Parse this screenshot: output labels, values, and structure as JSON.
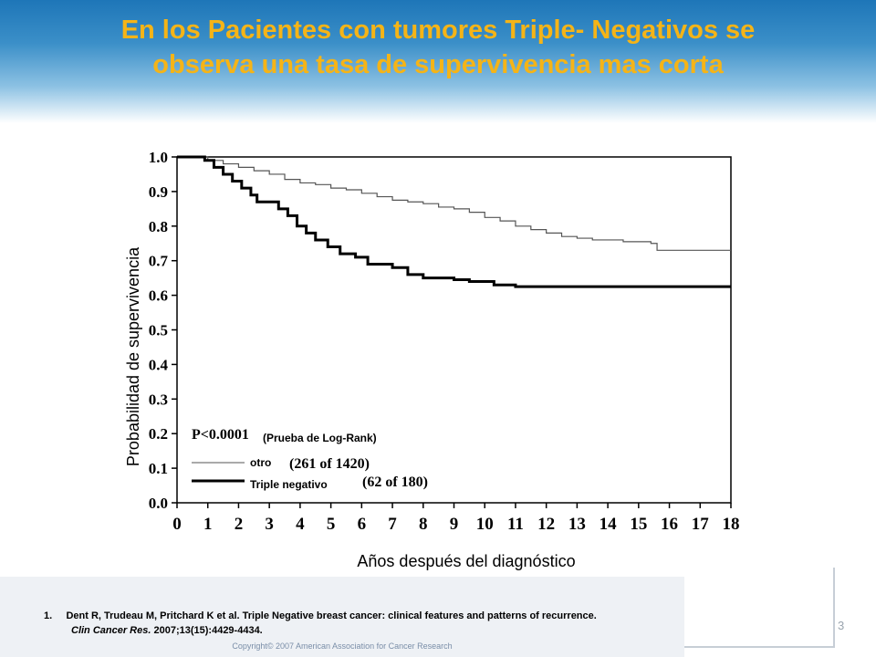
{
  "slide": {
    "title_line1": "En los Pacientes con tumores Triple- Negativos se",
    "title_line2": "observa una tasa de supervivencia mas corta",
    "page_number": "3",
    "colors": {
      "title": "#f5b417",
      "header": "#1e76b8"
    }
  },
  "reference": {
    "number": "1.",
    "text": "Dent R, Trudeau M, Pritchard K et al. Triple Negative breast cancer: clinical features and patterns of recurrence.",
    "journal": "Clin Cancer Res.",
    "citation": "2007;13(15):4429-4434."
  },
  "copyright": "Copyright© 2007 American Association for Cancer Research",
  "chart_data": {
    "type": "line",
    "subtype": "kaplan-meier step",
    "xlabel": "Años después del diagnóstico",
    "ylabel": "Probabilidad de supervivencia",
    "xlim": [
      0,
      18
    ],
    "ylim": [
      0,
      1.0
    ],
    "x_ticks": [
      "0",
      "1",
      "2",
      "3",
      "4",
      "5",
      "6",
      "7",
      "8",
      "9",
      "10",
      "11",
      "12",
      "13",
      "14",
      "15",
      "16",
      "17",
      "18"
    ],
    "y_ticks": [
      "0.0",
      "0.1",
      "0.2",
      "0.3",
      "0.4",
      "0.5",
      "0.6",
      "0.7",
      "0.8",
      "0.9",
      "1.0"
    ],
    "grid": false,
    "legend_position": "bottom-left",
    "pvalue": "P<0.0001",
    "test_label": "(Prueba de Log-Rank)",
    "series": [
      {
        "name": "otro",
        "count": "(261 of 1420)",
        "stroke": "thin",
        "color": "#555555",
        "points": [
          [
            0,
            1.0
          ],
          [
            0.5,
            1.0
          ],
          [
            1,
            0.99
          ],
          [
            1.5,
            0.98
          ],
          [
            2,
            0.97
          ],
          [
            2.5,
            0.96
          ],
          [
            3,
            0.95
          ],
          [
            3.5,
            0.935
          ],
          [
            4,
            0.925
          ],
          [
            4.5,
            0.92
          ],
          [
            5,
            0.91
          ],
          [
            5.5,
            0.905
          ],
          [
            6,
            0.895
          ],
          [
            6.5,
            0.885
          ],
          [
            7,
            0.875
          ],
          [
            7.5,
            0.87
          ],
          [
            8,
            0.865
          ],
          [
            8.5,
            0.855
          ],
          [
            9,
            0.85
          ],
          [
            9.5,
            0.84
          ],
          [
            10,
            0.825
          ],
          [
            10.5,
            0.815
          ],
          [
            11,
            0.8
          ],
          [
            11.5,
            0.79
          ],
          [
            12,
            0.78
          ],
          [
            12.5,
            0.77
          ],
          [
            13,
            0.765
          ],
          [
            13.5,
            0.76
          ],
          [
            14,
            0.76
          ],
          [
            14.5,
            0.755
          ],
          [
            15,
            0.755
          ],
          [
            15.4,
            0.75
          ],
          [
            15.6,
            0.73
          ],
          [
            16,
            0.73
          ],
          [
            17,
            0.73
          ],
          [
            18,
            0.73
          ]
        ]
      },
      {
        "name": "Triple negativo",
        "count": "(62 of 180)",
        "stroke": "thick",
        "color": "#000000",
        "points": [
          [
            0,
            1.0
          ],
          [
            0.4,
            1.0
          ],
          [
            0.9,
            0.99
          ],
          [
            1.2,
            0.97
          ],
          [
            1.5,
            0.95
          ],
          [
            1.8,
            0.93
          ],
          [
            2.1,
            0.91
          ],
          [
            2.4,
            0.89
          ],
          [
            2.6,
            0.87
          ],
          [
            3,
            0.87
          ],
          [
            3.3,
            0.85
          ],
          [
            3.6,
            0.83
          ],
          [
            3.9,
            0.8
          ],
          [
            4.2,
            0.78
          ],
          [
            4.5,
            0.76
          ],
          [
            4.9,
            0.74
          ],
          [
            5.3,
            0.72
          ],
          [
            5.8,
            0.71
          ],
          [
            6.2,
            0.69
          ],
          [
            7,
            0.68
          ],
          [
            7.5,
            0.66
          ],
          [
            8,
            0.65
          ],
          [
            9,
            0.645
          ],
          [
            9.5,
            0.64
          ],
          [
            10.3,
            0.63
          ],
          [
            11,
            0.625
          ],
          [
            12,
            0.625
          ],
          [
            14,
            0.625
          ],
          [
            16,
            0.625
          ],
          [
            18,
            0.625
          ]
        ]
      }
    ]
  }
}
